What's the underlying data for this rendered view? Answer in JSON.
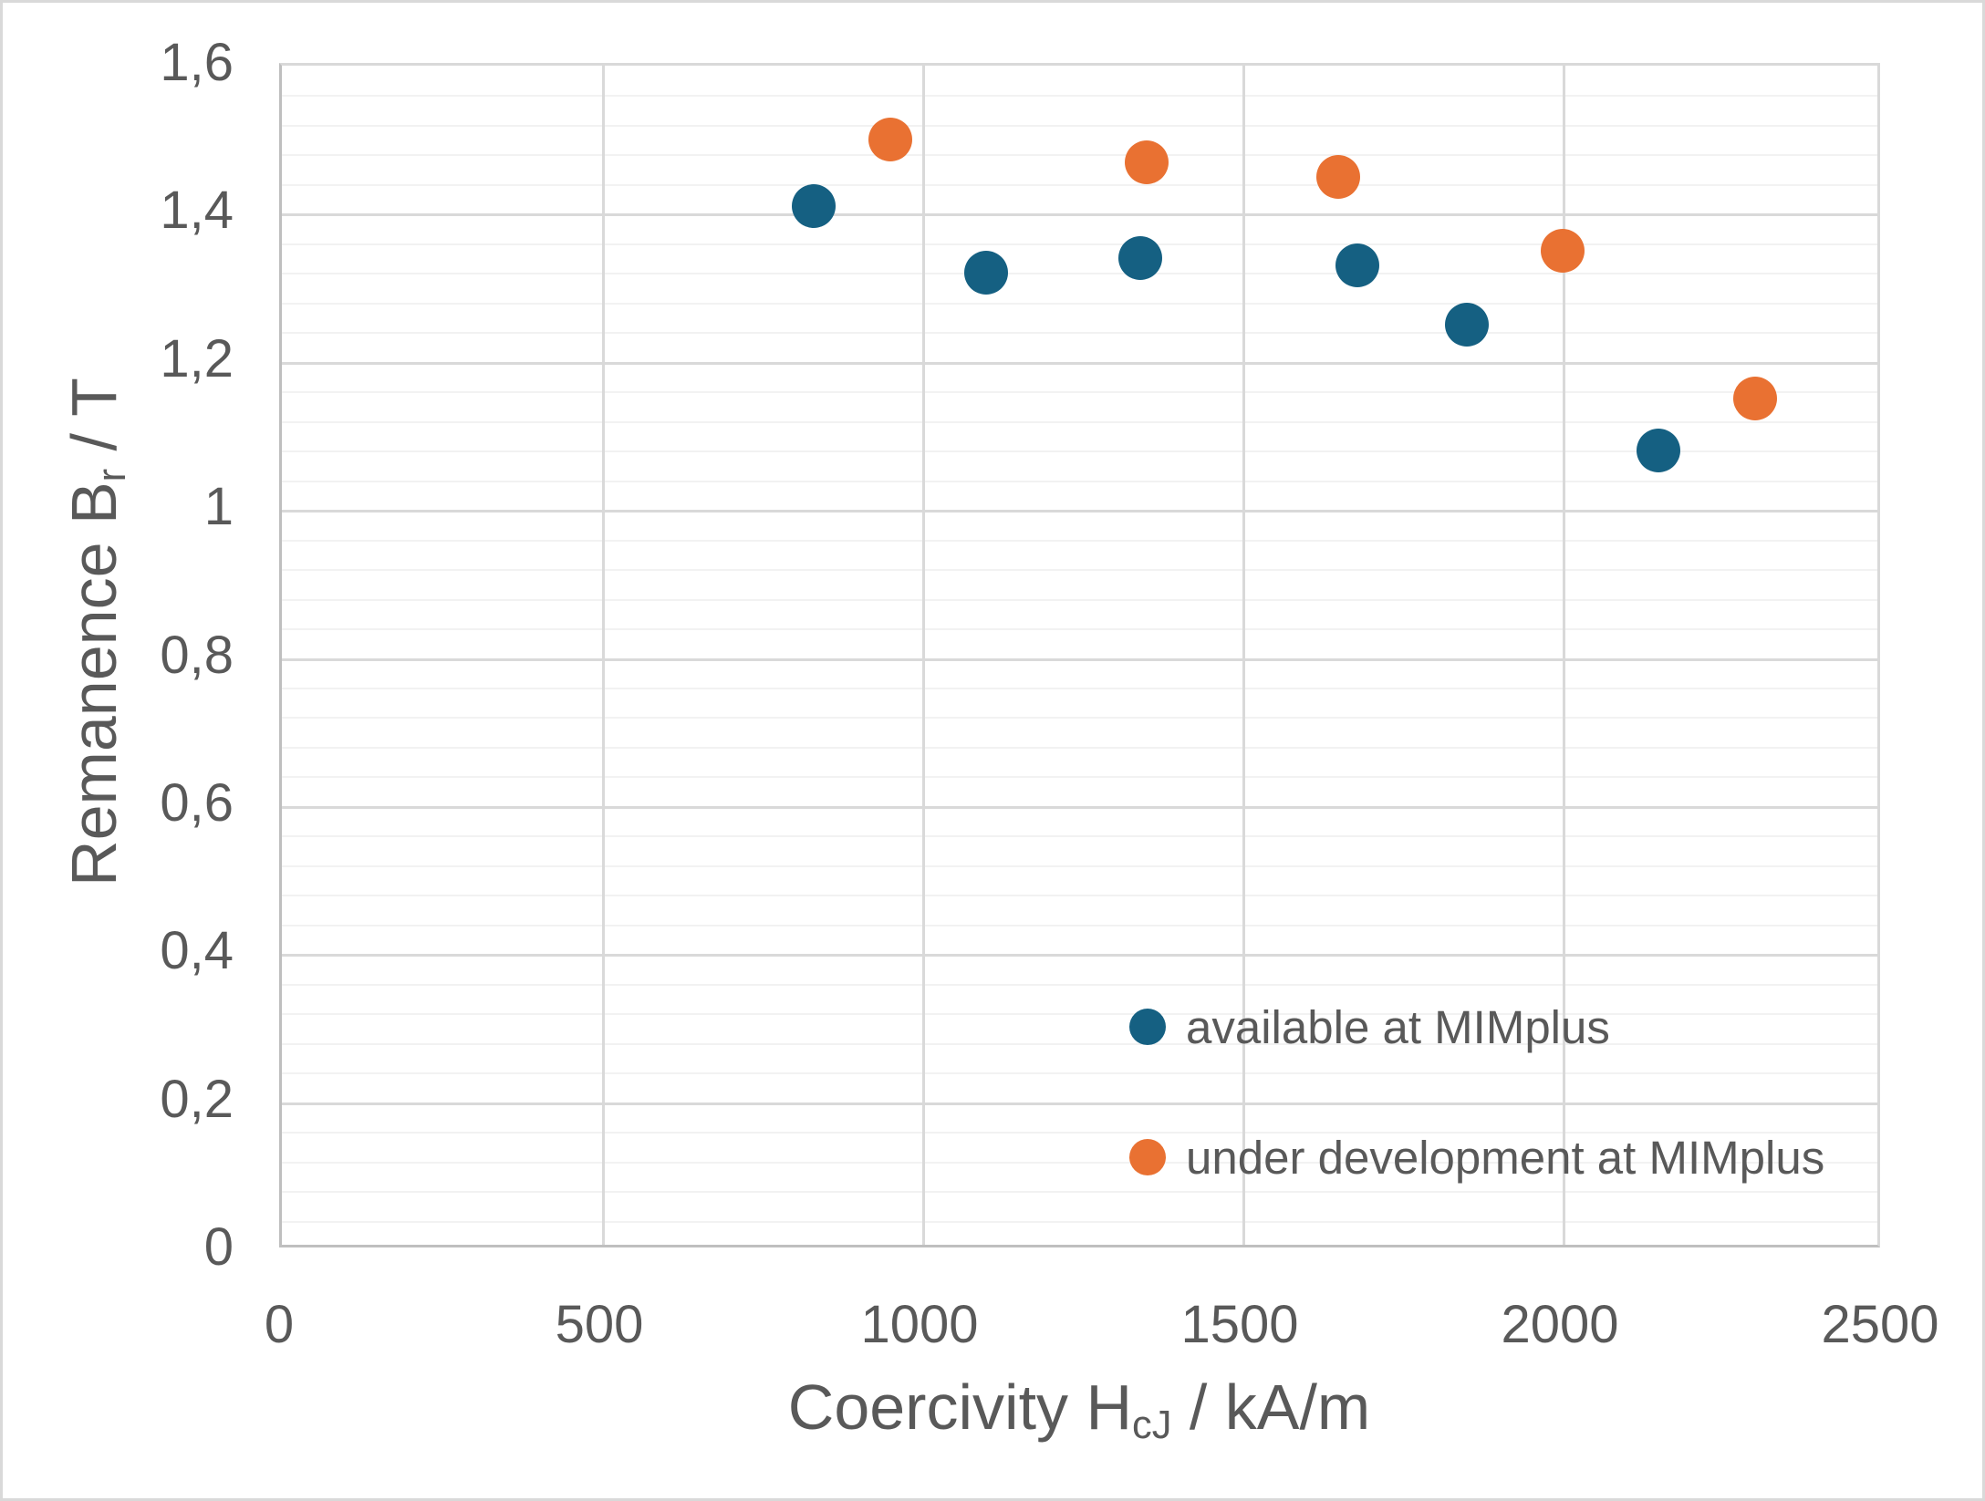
{
  "chart_data": {
    "type": "scatter",
    "title": "",
    "xlabel": {
      "pre": "Coercivity H",
      "sub": "cJ",
      "post": " / kA/m"
    },
    "ylabel": {
      "pre": "Remanence B",
      "sub": "r",
      "post": " / T"
    },
    "x_axis": {
      "min": 0,
      "max": 2500,
      "major_unit": 500,
      "tick_labels": [
        "0",
        "500",
        "1000",
        "1500",
        "2000",
        "2500"
      ]
    },
    "y_axis": {
      "min": 0,
      "max": 1.6,
      "major_unit": 0.2,
      "minor_unit": 0.04,
      "tick_labels": [
        "0",
        "0,2",
        "0,4",
        "0,6",
        "0,8",
        "1",
        "1,2",
        "1,4",
        "1,6"
      ]
    },
    "grid": {
      "major_color": "#d9d9d9",
      "minor_color": "#f2f2f2",
      "axis_color": "#bfbfbf"
    },
    "text_color": "#595959",
    "legend_position": "inside-bottom-right",
    "series": [
      {
        "name": "available at MIMplus",
        "color": "#156082",
        "points": [
          {
            "x": 830,
            "y": 1.41
          },
          {
            "x": 1100,
            "y": 1.32
          },
          {
            "x": 1340,
            "y": 1.34
          },
          {
            "x": 1680,
            "y": 1.33
          },
          {
            "x": 1850,
            "y": 1.25
          },
          {
            "x": 2150,
            "y": 1.08
          }
        ]
      },
      {
        "name": "under development at MIMplus",
        "color": "#E97132",
        "points": [
          {
            "x": 950,
            "y": 1.5
          },
          {
            "x": 1350,
            "y": 1.47
          },
          {
            "x": 1650,
            "y": 1.45
          },
          {
            "x": 2000,
            "y": 1.35
          },
          {
            "x": 2300,
            "y": 1.15
          }
        ]
      }
    ]
  }
}
